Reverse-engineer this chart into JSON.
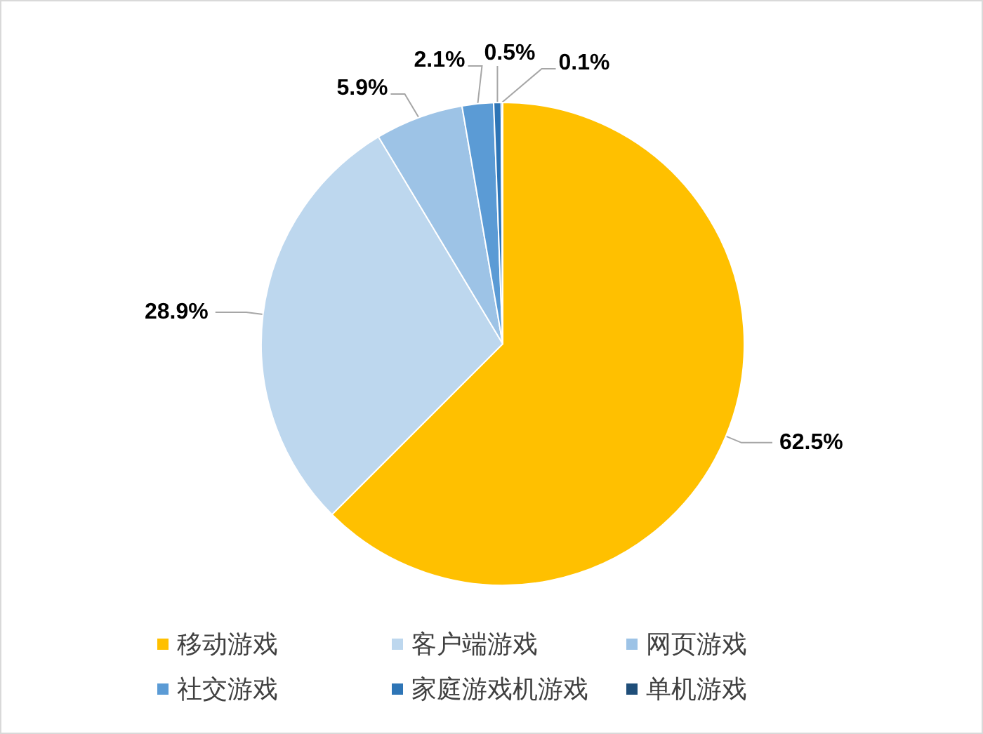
{
  "chart_data": {
    "type": "pie",
    "categories": [
      "移动游戏",
      "客户端游戏",
      "网页游戏",
      "社交游戏",
      "家庭游戏机游戏",
      "单机游戏"
    ],
    "values": [
      62.5,
      28.9,
      5.9,
      2.1,
      0.5,
      0.1
    ],
    "colors": [
      "#ffc000",
      "#bdd7ee",
      "#9dc3e6",
      "#5b9bd5",
      "#2e75b6",
      "#1f4e79"
    ],
    "value_labels": [
      "62.5%",
      "28.9%",
      "5.9%",
      "2.1%",
      "0.5%",
      "0.1%"
    ],
    "legend": "bottom"
  }
}
